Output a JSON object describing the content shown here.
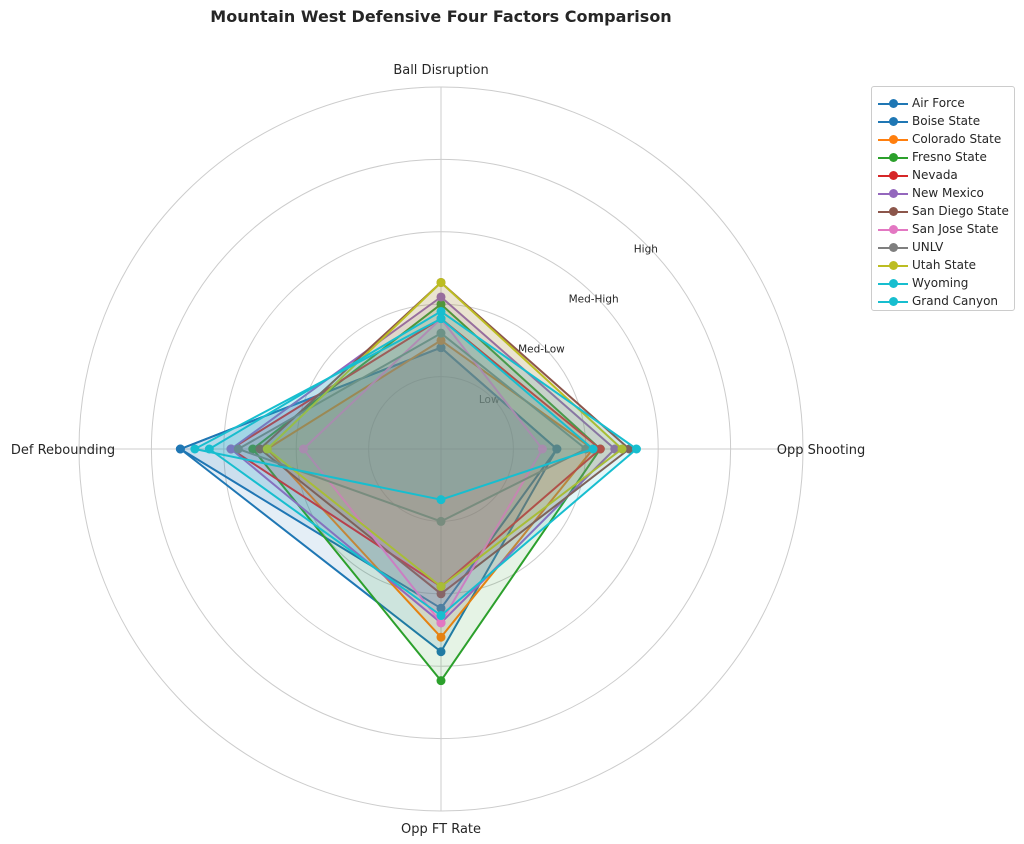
{
  "chart_data": {
    "type": "radar",
    "title": "Mountain West Defensive Four Factors Comparison",
    "axes": [
      "Ball Disruption",
      "Opp Shooting",
      "Opp FT Rate",
      "Def Rebounding"
    ],
    "rings": [
      "Low",
      "Med-Low",
      "Med-High",
      "High"
    ],
    "rlim": [
      0,
      5
    ],
    "grid": true,
    "legend_position": "top-right",
    "series": [
      {
        "name": "Air Force",
        "color": "#1f77b4",
        "values": [
          1.4,
          1.6,
          2.2,
          3.6
        ]
      },
      {
        "name": "Boise State",
        "color": "#1f77b4",
        "values": [
          1.4,
          1.6,
          2.8,
          3.6
        ]
      },
      {
        "name": "Colorado State",
        "color": "#ff7f0e",
        "values": [
          1.5,
          2.1,
          2.6,
          2.4
        ]
      },
      {
        "name": "Fresno State",
        "color": "#2ca02c",
        "values": [
          2.0,
          2.2,
          3.2,
          2.6
        ]
      },
      {
        "name": "Nevada",
        "color": "#d62728",
        "values": [
          1.8,
          2.2,
          1.9,
          2.9
        ]
      },
      {
        "name": "New Mexico",
        "color": "#9467bd",
        "values": [
          2.1,
          2.4,
          2.4,
          2.9
        ]
      },
      {
        "name": "San Diego State",
        "color": "#8c564b",
        "values": [
          2.3,
          2.6,
          2.0,
          2.5
        ]
      },
      {
        "name": "San Jose State",
        "color": "#e377c2",
        "values": [
          1.8,
          1.4,
          2.4,
          1.9
        ]
      },
      {
        "name": "UNLV",
        "color": "#7f7f7f",
        "values": [
          1.6,
          2.0,
          1.0,
          2.8
        ]
      },
      {
        "name": "Utah State",
        "color": "#bcbd22",
        "values": [
          2.3,
          2.5,
          1.9,
          2.4
        ]
      },
      {
        "name": "Wyoming",
        "color": "#17becf",
        "values": [
          1.9,
          2.7,
          2.3,
          3.2
        ]
      },
      {
        "name": "Grand Canyon",
        "color": "#17becf",
        "values": [
          1.8,
          2.1,
          0.7,
          3.4
        ]
      }
    ]
  }
}
